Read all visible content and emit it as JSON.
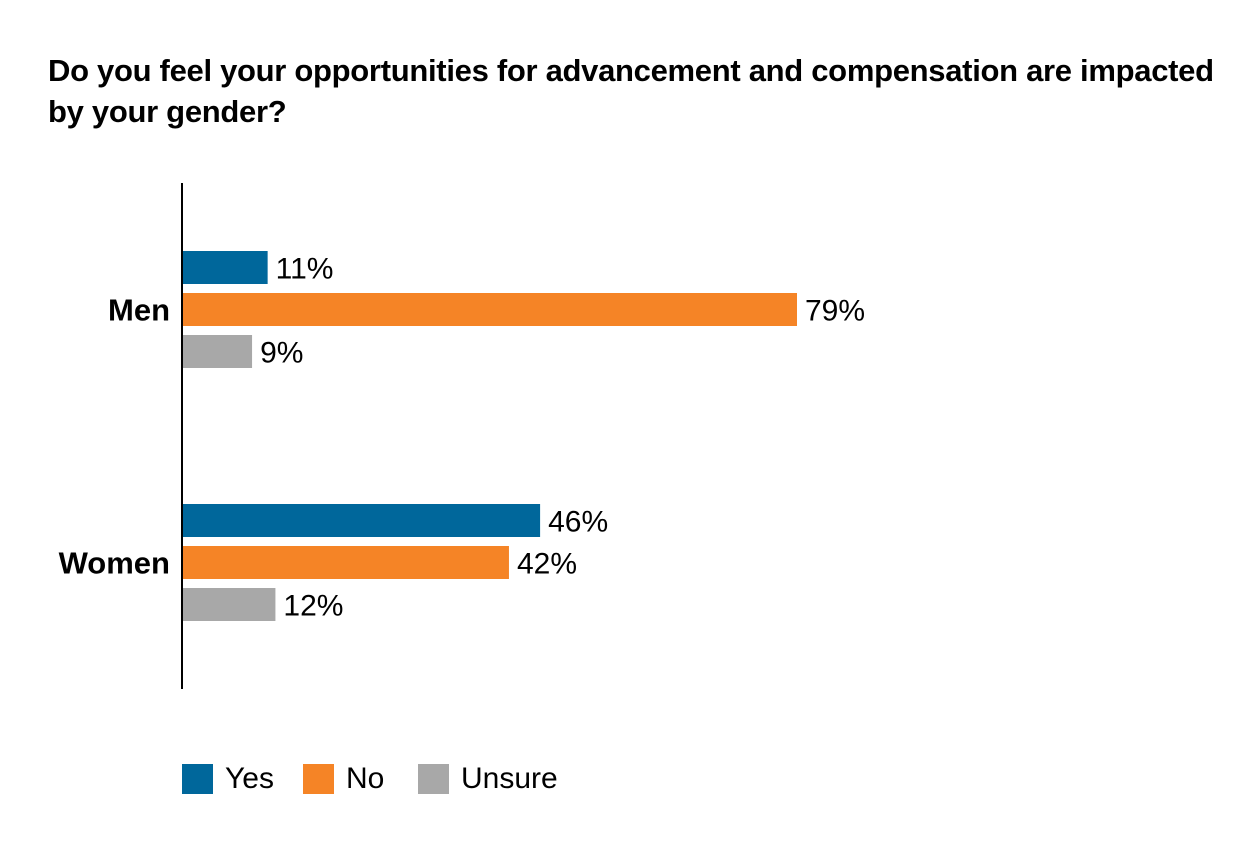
{
  "chart_data": {
    "type": "bar",
    "orientation": "horizontal",
    "title": "Do you feel your opportunities for advancement and compensation are impacted by your gender?",
    "categories": [
      "Men",
      "Women"
    ],
    "series": [
      {
        "name": "Yes",
        "values": [
          11,
          46
        ],
        "labels": [
          "11%",
          "46%"
        ],
        "color": "#00679b"
      },
      {
        "name": "No",
        "values": [
          79,
          42
        ],
        "labels": [
          "79%",
          "42%"
        ],
        "color": "#f58426"
      },
      {
        "name": "Unsure",
        "values": [
          9,
          12
        ],
        "labels": [
          "9%",
          "12%"
        ],
        "color": "#a8a8a8"
      }
    ],
    "xlim": [
      0,
      80
    ],
    "grid": false,
    "legend_position": "bottom-left"
  }
}
